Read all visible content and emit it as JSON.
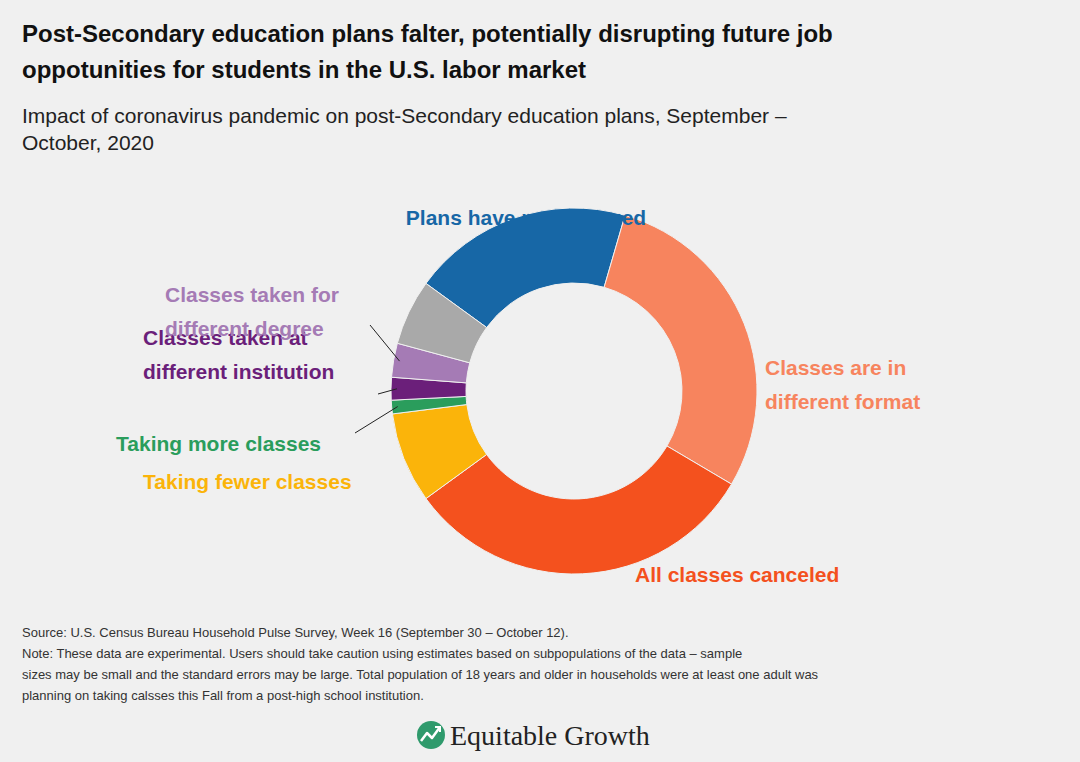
{
  "chart_data": {
    "type": "donut",
    "title": [
      "Post-Secondary education plans falter, potentially disrupting future job",
      "oppotunities for students in the U.S. labor market"
    ],
    "subtitle": [
      "Impact of coronavirus pandemic on post-Secondary education plans, September –",
      "October, 2020"
    ],
    "categories": [
      "Plans have not changed",
      "Classes are in different format",
      "All classes canceled",
      "Taking fewer classes",
      "Taking more classes",
      "Classes taken at different institution",
      "Classes taken for different degree",
      null
    ],
    "values": [
      19.5,
      29,
      31.5,
      8,
      1.2,
      2,
      3,
      5.8
    ],
    "colors": [
      "#1767a6",
      "#f7845e",
      "#f4511e",
      "#fbb40a",
      "#2a9d5c",
      "#6b1f7a",
      "#a57bb5",
      "#a9a9a9"
    ],
    "source": "Source: U.S. Census Bureau Household Pulse Survey, Week 16 (September 30 – October 12).",
    "note": [
      "Note: These data are experimental. Users should take caution using estimates based on subpopulations of the data – sample",
      "sizes may be small and the standard errors may be large. Total population of 18 years and older in households were at least one adult was",
      "planning on taking calsses this Fall from a post-high school institution."
    ],
    "logo": "Equitable Growth"
  }
}
